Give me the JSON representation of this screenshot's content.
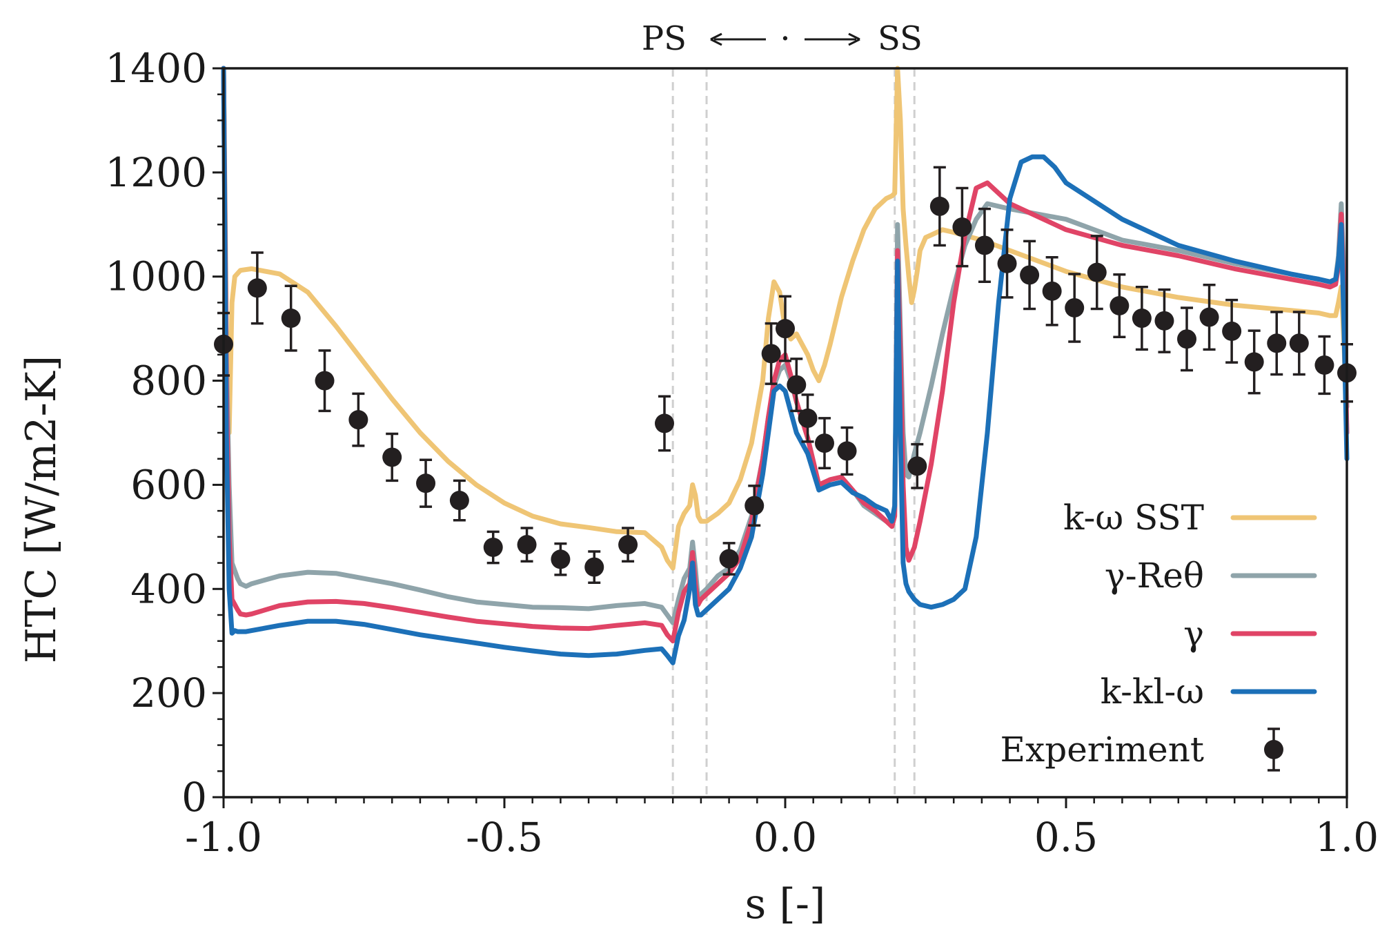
{
  "chart_data": {
    "type": "line",
    "title": "",
    "xlabel": "s [-]",
    "ylabel": "HTC [W/m2-K]",
    "xlim": [
      -1.0,
      1.0
    ],
    "ylim": [
      0,
      1400
    ],
    "xticks": [
      "-1.0",
      "-0.5",
      "0.0",
      "0.5",
      "1.0"
    ],
    "xtick_values": [
      -1.0,
      -0.5,
      0.0,
      0.5,
      1.0
    ],
    "yticks": [
      "0",
      "200",
      "400",
      "600",
      "800",
      "1000",
      "1200",
      "1400"
    ],
    "ytick_values": [
      0,
      200,
      400,
      600,
      800,
      1000,
      1200,
      1400
    ],
    "annotation": {
      "left": "PS",
      "right": "SS",
      "center": "·"
    },
    "reference_lines_x": [
      -0.2,
      -0.14,
      0.195,
      0.23
    ],
    "legend_position": "lower-right",
    "series": [
      {
        "name": "k-ω SST",
        "color": "#EFC575",
        "x": [
          -1.0,
          -0.995,
          -0.99,
          -0.985,
          -0.98,
          -0.97,
          -0.95,
          -0.9,
          -0.85,
          -0.8,
          -0.75,
          -0.7,
          -0.65,
          -0.6,
          -0.55,
          -0.5,
          -0.45,
          -0.4,
          -0.35,
          -0.3,
          -0.25,
          -0.22,
          -0.21,
          -0.2,
          -0.19,
          -0.18,
          -0.17,
          -0.165,
          -0.16,
          -0.155,
          -0.15,
          -0.14,
          -0.12,
          -0.1,
          -0.08,
          -0.06,
          -0.04,
          -0.03,
          -0.02,
          -0.01,
          0.0,
          0.01,
          0.02,
          0.03,
          0.04,
          0.05,
          0.06,
          0.07,
          0.08,
          0.1,
          0.12,
          0.14,
          0.16,
          0.18,
          0.19,
          0.195,
          0.2,
          0.205,
          0.21,
          0.215,
          0.22,
          0.225,
          0.23,
          0.235,
          0.24,
          0.25,
          0.26,
          0.28,
          0.3,
          0.35,
          0.4,
          0.45,
          0.5,
          0.6,
          0.7,
          0.8,
          0.9,
          0.95,
          0.97,
          0.98,
          0.985,
          0.99,
          0.995,
          1.0
        ],
        "y": [
          1400,
          900,
          700,
          950,
          1000,
          1012,
          1015,
          1005,
          970,
          905,
          835,
          765,
          700,
          645,
          600,
          565,
          540,
          525,
          518,
          510,
          508,
          480,
          455,
          440,
          520,
          545,
          560,
          600,
          580,
          540,
          530,
          530,
          545,
          565,
          610,
          680,
          800,
          920,
          990,
          970,
          900,
          880,
          890,
          870,
          850,
          820,
          800,
          830,
          870,
          960,
          1030,
          1090,
          1130,
          1150,
          1155,
          1160,
          1400,
          1300,
          1130,
          1060,
          1000,
          950,
          975,
          1010,
          1050,
          1075,
          1080,
          1090,
          1085,
          1070,
          1050,
          1030,
          1010,
          980,
          960,
          945,
          935,
          930,
          925,
          925,
          950,
          980,
          870,
          700
        ]
      },
      {
        "name": "γ-Reθ",
        "color": "#8FA4AA",
        "x": [
          -1.0,
          -0.995,
          -0.99,
          -0.985,
          -0.98,
          -0.975,
          -0.97,
          -0.96,
          -0.95,
          -0.9,
          -0.85,
          -0.8,
          -0.75,
          -0.7,
          -0.65,
          -0.6,
          -0.55,
          -0.5,
          -0.45,
          -0.4,
          -0.35,
          -0.3,
          -0.25,
          -0.22,
          -0.21,
          -0.2,
          -0.19,
          -0.18,
          -0.17,
          -0.165,
          -0.16,
          -0.155,
          -0.15,
          -0.14,
          -0.12,
          -0.1,
          -0.08,
          -0.06,
          -0.04,
          -0.03,
          -0.02,
          -0.01,
          0.0,
          0.01,
          0.02,
          0.04,
          0.06,
          0.08,
          0.1,
          0.12,
          0.14,
          0.16,
          0.18,
          0.19,
          0.195,
          0.2,
          0.205,
          0.21,
          0.215,
          0.22,
          0.23,
          0.24,
          0.26,
          0.28,
          0.3,
          0.32,
          0.34,
          0.36,
          0.4,
          0.5,
          0.6,
          0.7,
          0.8,
          0.9,
          0.95,
          0.97,
          0.98,
          0.985,
          0.99,
          0.995,
          1.0
        ],
        "y": [
          1400,
          850,
          600,
          450,
          435,
          420,
          410,
          405,
          410,
          425,
          432,
          430,
          420,
          410,
          398,
          385,
          375,
          370,
          365,
          364,
          362,
          368,
          372,
          365,
          350,
          335,
          380,
          420,
          440,
          490,
          440,
          380,
          390,
          400,
          425,
          440,
          475,
          540,
          650,
          730,
          790,
          820,
          830,
          800,
          760,
          690,
          600,
          610,
          615,
          590,
          560,
          545,
          530,
          525,
          550,
          1100,
          900,
          700,
          620,
          615,
          660,
          700,
          790,
          890,
          980,
          1060,
          1110,
          1140,
          1130,
          1110,
          1070,
          1050,
          1025,
          1005,
          995,
          990,
          995,
          1040,
          1140,
          1000,
          750
        ]
      },
      {
        "name": "γ",
        "color": "#E04466",
        "x": [
          -1.0,
          -0.995,
          -0.99,
          -0.985,
          -0.98,
          -0.975,
          -0.97,
          -0.96,
          -0.95,
          -0.9,
          -0.85,
          -0.8,
          -0.75,
          -0.7,
          -0.65,
          -0.6,
          -0.55,
          -0.5,
          -0.45,
          -0.4,
          -0.35,
          -0.3,
          -0.25,
          -0.22,
          -0.21,
          -0.2,
          -0.19,
          -0.18,
          -0.17,
          -0.165,
          -0.16,
          -0.155,
          -0.15,
          -0.14,
          -0.12,
          -0.1,
          -0.08,
          -0.06,
          -0.04,
          -0.03,
          -0.02,
          -0.01,
          0.0,
          0.01,
          0.02,
          0.04,
          0.06,
          0.08,
          0.1,
          0.12,
          0.14,
          0.16,
          0.18,
          0.19,
          0.195,
          0.2,
          0.205,
          0.21,
          0.215,
          0.22,
          0.23,
          0.24,
          0.26,
          0.28,
          0.3,
          0.32,
          0.34,
          0.36,
          0.4,
          0.5,
          0.6,
          0.7,
          0.8,
          0.9,
          0.95,
          0.97,
          0.98,
          0.985,
          0.99,
          0.995,
          1.0
        ],
        "y": [
          1400,
          800,
          500,
          380,
          370,
          360,
          352,
          350,
          352,
          368,
          375,
          376,
          372,
          364,
          355,
          346,
          338,
          333,
          328,
          325,
          324,
          330,
          335,
          330,
          312,
          300,
          355,
          395,
          410,
          470,
          410,
          370,
          380,
          390,
          410,
          430,
          460,
          530,
          650,
          730,
          800,
          840,
          850,
          810,
          760,
          690,
          600,
          610,
          615,
          590,
          565,
          550,
          530,
          520,
          540,
          1050,
          850,
          600,
          480,
          455,
          480,
          530,
          640,
          780,
          950,
          1080,
          1170,
          1180,
          1140,
          1090,
          1060,
          1040,
          1015,
          995,
          985,
          980,
          985,
          1020,
          1120,
          950,
          700
        ]
      },
      {
        "name": "k-kl-ω",
        "color": "#1C70B8",
        "x": [
          -1.0,
          -0.995,
          -0.99,
          -0.985,
          -0.98,
          -0.975,
          -0.97,
          -0.96,
          -0.95,
          -0.9,
          -0.85,
          -0.8,
          -0.75,
          -0.7,
          -0.65,
          -0.6,
          -0.55,
          -0.5,
          -0.45,
          -0.4,
          -0.35,
          -0.3,
          -0.25,
          -0.22,
          -0.21,
          -0.2,
          -0.19,
          -0.18,
          -0.17,
          -0.165,
          -0.16,
          -0.155,
          -0.15,
          -0.14,
          -0.12,
          -0.1,
          -0.08,
          -0.06,
          -0.04,
          -0.03,
          -0.02,
          -0.01,
          0.0,
          0.01,
          0.02,
          0.04,
          0.06,
          0.08,
          0.1,
          0.12,
          0.14,
          0.16,
          0.18,
          0.19,
          0.195,
          0.2,
          0.205,
          0.21,
          0.215,
          0.22,
          0.23,
          0.24,
          0.26,
          0.28,
          0.3,
          0.32,
          0.34,
          0.36,
          0.38,
          0.4,
          0.42,
          0.44,
          0.46,
          0.48,
          0.5,
          0.6,
          0.7,
          0.8,
          0.9,
          0.95,
          0.97,
          0.98,
          0.985,
          0.99,
          0.995,
          1.0
        ],
        "y": [
          1400,
          700,
          400,
          315,
          320,
          318,
          318,
          318,
          320,
          330,
          338,
          338,
          332,
          322,
          312,
          304,
          296,
          288,
          281,
          275,
          272,
          275,
          282,
          285,
          272,
          258,
          310,
          340,
          400,
          450,
          370,
          350,
          350,
          360,
          380,
          400,
          440,
          500,
          620,
          700,
          780,
          790,
          780,
          740,
          700,
          660,
          590,
          600,
          605,
          585,
          575,
          560,
          550,
          530,
          560,
          1030,
          700,
          450,
          410,
          395,
          380,
          370,
          365,
          370,
          380,
          400,
          500,
          700,
          950,
          1150,
          1220,
          1230,
          1230,
          1210,
          1180,
          1110,
          1060,
          1030,
          1005,
          995,
          990,
          995,
          1030,
          1100,
          900,
          650
        ]
      }
    ],
    "experiment": {
      "name": "Experiment",
      "color": "#231F20",
      "x": [
        -1.0,
        -0.94,
        -0.88,
        -0.82,
        -0.76,
        -0.7,
        -0.64,
        -0.58,
        -0.52,
        -0.46,
        -0.4,
        -0.34,
        -0.28,
        -0.215,
        -0.1,
        -0.055,
        -0.025,
        0.0,
        0.02,
        0.04,
        0.07,
        0.11,
        0.235,
        0.275,
        0.315,
        0.355,
        0.395,
        0.435,
        0.475,
        0.515,
        0.555,
        0.595,
        0.635,
        0.675,
        0.715,
        0.755,
        0.795,
        0.835,
        0.875,
        0.915,
        0.96,
        1.0
      ],
      "y": [
        870,
        978,
        920,
        800,
        725,
        653,
        603,
        570,
        480,
        485,
        457,
        442,
        485,
        718,
        458,
        560,
        852,
        900,
        792,
        728,
        680,
        665,
        636,
        1135,
        1095,
        1060,
        1025,
        1003,
        972,
        940,
        1008,
        944,
        920,
        915,
        880,
        922,
        895,
        836,
        872,
        872,
        830,
        815
      ],
      "err": [
        60,
        68,
        62,
        58,
        50,
        45,
        45,
        38,
        30,
        32,
        30,
        30,
        32,
        52,
        30,
        38,
        58,
        62,
        50,
        45,
        48,
        45,
        42,
        75,
        75,
        70,
        65,
        65,
        65,
        65,
        70,
        60,
        60,
        60,
        60,
        62,
        60,
        60,
        60,
        60,
        55,
        55
      ]
    }
  }
}
